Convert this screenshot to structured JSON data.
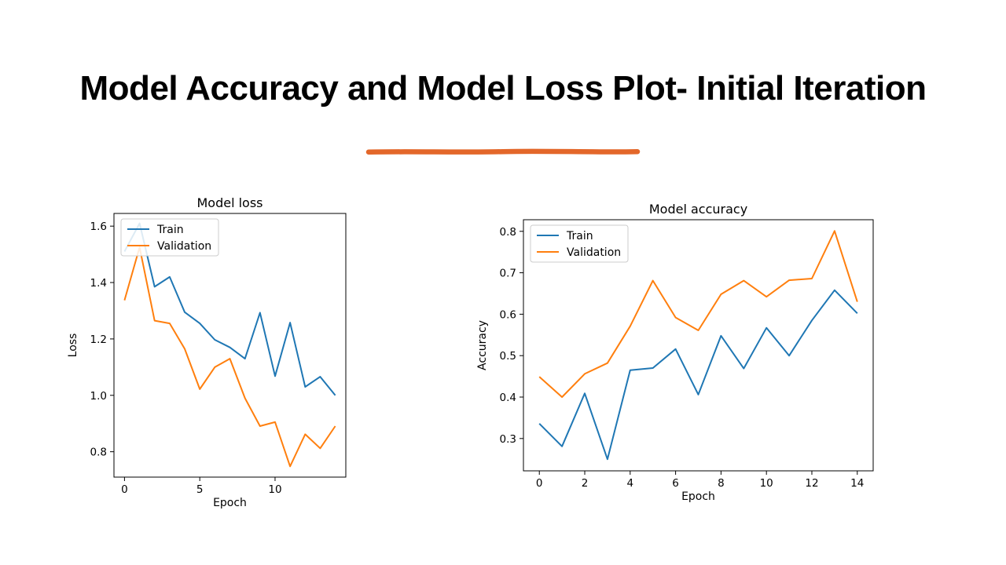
{
  "slide": {
    "title": "Model Accuracy and Model Loss Plot- Initial Iteration",
    "accent_color": "#E3672A"
  },
  "chart_data": [
    {
      "id": "loss",
      "type": "line",
      "title": "Model loss",
      "xlabel": "Epoch",
      "ylabel": "Loss",
      "x": [
        0,
        1,
        2,
        3,
        4,
        5,
        6,
        7,
        8,
        9,
        10,
        11,
        12,
        13,
        14
      ],
      "xlim": [
        -0.7,
        14.7
      ],
      "ylim": [
        0.71,
        1.645
      ],
      "xticks": [
        0,
        5,
        10
      ],
      "yticks": [
        0.8,
        1.0,
        1.2,
        1.4,
        1.6
      ],
      "legend_loc": "upper left",
      "series": [
        {
          "name": "Train",
          "color": "#1f77b4",
          "values": [
            1.51,
            1.61,
            1.385,
            1.42,
            1.295,
            1.255,
            1.197,
            1.17,
            1.13,
            1.293,
            1.068,
            1.258,
            1.03,
            1.066,
            1.0
          ]
        },
        {
          "name": "Validation",
          "color": "#ff7f0e",
          "values": [
            1.337,
            1.525,
            1.265,
            1.255,
            1.165,
            1.022,
            1.1,
            1.13,
            0.99,
            0.891,
            0.905,
            0.748,
            0.862,
            0.812,
            0.891
          ]
        }
      ]
    },
    {
      "id": "accuracy",
      "type": "line",
      "title": "Model accuracy",
      "xlabel": "Epoch",
      "ylabel": "Accuracy",
      "x": [
        0,
        1,
        2,
        3,
        4,
        5,
        6,
        7,
        8,
        9,
        10,
        11,
        12,
        13,
        14
      ],
      "xlim": [
        -0.7,
        14.7
      ],
      "ylim": [
        0.222,
        0.828
      ],
      "xticks": [
        0,
        2,
        4,
        6,
        8,
        10,
        12,
        14
      ],
      "yticks": [
        0.3,
        0.4,
        0.5,
        0.6,
        0.7,
        0.8
      ],
      "legend_loc": "upper left",
      "series": [
        {
          "name": "Train",
          "color": "#1f77b4",
          "values": [
            0.336,
            0.281,
            0.409,
            0.25,
            0.465,
            0.47,
            0.516,
            0.406,
            0.548,
            0.469,
            0.567,
            0.5,
            0.585,
            0.658,
            0.602
          ]
        },
        {
          "name": "Validation",
          "color": "#ff7f0e",
          "values": [
            0.449,
            0.4,
            0.456,
            0.482,
            0.571,
            0.681,
            0.592,
            0.561,
            0.648,
            0.681,
            0.642,
            0.682,
            0.686,
            0.801,
            0.63
          ]
        }
      ]
    }
  ]
}
